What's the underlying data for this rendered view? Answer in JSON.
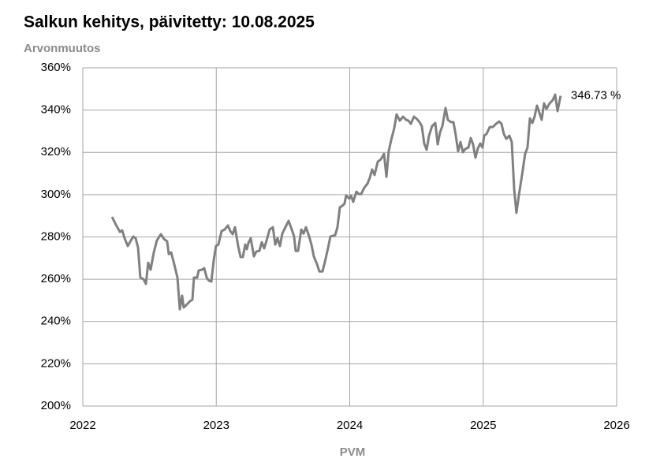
{
  "chart_data": {
    "type": "line",
    "title": "Salkun kehitys, päivitetty: 10.08.2025",
    "y_label": "Arvonmuutos",
    "x_label": "PVM",
    "annotation": "346.73 %",
    "color": "#808080",
    "grid": true,
    "xlim": [
      2022,
      2026
    ],
    "xticks": [
      2022,
      2023,
      2024,
      2025,
      2026
    ],
    "ylim": [
      200,
      360
    ],
    "yticks": [
      {
        "value": 200,
        "label": "200%"
      },
      {
        "value": 220,
        "label": "220%"
      },
      {
        "value": 240,
        "label": "240%"
      },
      {
        "value": 260,
        "label": "260%"
      },
      {
        "value": 280,
        "label": "280%"
      },
      {
        "value": 300,
        "label": "300%"
      },
      {
        "value": 320,
        "label": "320%"
      },
      {
        "value": 340,
        "label": "340%"
      },
      {
        "value": 360,
        "label": "360%"
      }
    ],
    "x": [
      2022.219,
      2022.248,
      2022.278,
      2022.295,
      2022.313,
      2022.337,
      2022.36,
      2022.378,
      2022.396,
      2022.414,
      2022.431,
      2022.455,
      2022.473,
      2022.49,
      2022.508,
      2022.532,
      2022.555,
      2022.585,
      2022.609,
      2022.632,
      2022.644,
      2022.662,
      2022.685,
      2022.709,
      2022.727,
      2022.744,
      2022.756,
      2022.78,
      2022.803,
      2022.821,
      2022.833,
      2022.857,
      2022.868,
      2022.892,
      2022.91,
      2022.928,
      2022.945,
      2022.963,
      2022.981,
      2022.998,
      2023.016,
      2023.04,
      2023.063,
      2023.087,
      2023.105,
      2023.123,
      2023.14,
      2023.164,
      2023.182,
      2023.199,
      2023.217,
      2023.229,
      2023.241,
      2023.258,
      2023.282,
      2023.3,
      2023.323,
      2023.341,
      2023.359,
      2023.377,
      2023.4,
      2023.424,
      2023.442,
      2023.459,
      2023.477,
      2023.495,
      2023.518,
      2023.542,
      2023.566,
      2023.583,
      2023.595,
      2023.613,
      2023.637,
      2023.654,
      2023.672,
      2023.696,
      2023.713,
      2023.731,
      2023.755,
      2023.772,
      2023.796,
      2023.814,
      2023.837,
      2023.855,
      2023.873,
      2023.891,
      2023.908,
      2023.926,
      2023.944,
      2023.961,
      2023.973,
      2023.997,
      2024.009,
      2024.026,
      2024.05,
      2024.068,
      2024.086,
      2024.109,
      2024.133,
      2024.151,
      2024.168,
      2024.186,
      2024.21,
      2024.233,
      2024.257,
      2024.275,
      2024.292,
      2024.31,
      2024.334,
      2024.351,
      2024.375,
      2024.399,
      2024.422,
      2024.44,
      2024.458,
      2024.481,
      2024.505,
      2024.523,
      2024.54,
      2024.558,
      2024.576,
      2024.594,
      2024.617,
      2024.641,
      2024.659,
      2024.676,
      2024.694,
      2024.718,
      2024.735,
      2024.759,
      2024.777,
      2024.794,
      2024.812,
      2024.83,
      2024.848,
      2024.865,
      2024.889,
      2024.907,
      2024.924,
      2024.942,
      2024.96,
      2024.978,
      2024.995,
      2025.007,
      2025.025,
      2025.049,
      2025.072,
      2025.096,
      2025.119,
      2025.137,
      2025.155,
      2025.173,
      2025.196,
      2025.214,
      2025.232,
      2025.249,
      2025.267,
      2025.291,
      2025.314,
      2025.332,
      2025.35,
      2025.368,
      2025.385,
      2025.403,
      2025.421,
      2025.438,
      2025.456,
      2025.474,
      2025.498,
      2025.521,
      2025.539,
      2025.557,
      2025.58
    ],
    "values": [
      289.5,
      285.8,
      282.4,
      283.1,
      279.4,
      275.7,
      278.3,
      280.2,
      279.4,
      274.9,
      260.8,
      260.0,
      257.8,
      267.8,
      264.5,
      272.7,
      278.3,
      281.3,
      279.0,
      277.9,
      271.9,
      272.7,
      267.1,
      260.8,
      245.8,
      252.2,
      246.6,
      248.1,
      249.6,
      250.3,
      260.8,
      260.8,
      264.1,
      264.5,
      265.2,
      260.8,
      259.3,
      258.9,
      269.0,
      275.7,
      276.4,
      282.8,
      283.5,
      285.4,
      282.8,
      281.3,
      284.6,
      275.7,
      270.5,
      270.5,
      276.4,
      274.2,
      277.2,
      279.4,
      270.8,
      273.1,
      273.4,
      277.5,
      274.6,
      278.3,
      283.5,
      284.6,
      276.4,
      279.4,
      275.7,
      281.6,
      284.6,
      287.6,
      283.5,
      280.2,
      273.4,
      273.4,
      283.5,
      281.6,
      284.6,
      280.2,
      276.4,
      270.8,
      267.1,
      263.7,
      263.7,
      268.2,
      274.6,
      280.2,
      280.5,
      280.9,
      284.6,
      294.0,
      294.7,
      295.8,
      299.6,
      298.1,
      299.6,
      296.6,
      301.4,
      300.3,
      300.3,
      303.3,
      305.2,
      308.1,
      311.9,
      309.3,
      315.6,
      316.7,
      319.3,
      308.5,
      320.5,
      325.7,
      331.6,
      338.0,
      335.0,
      336.9,
      335.4,
      335.0,
      333.5,
      336.9,
      335.7,
      334.3,
      332.4,
      324.2,
      321.2,
      327.9,
      332.4,
      333.9,
      323.8,
      329.4,
      332.4,
      341.0,
      335.4,
      334.3,
      334.3,
      328.3,
      320.5,
      324.9,
      320.1,
      321.6,
      322.3,
      326.8,
      323.8,
      317.5,
      321.9,
      324.2,
      322.3,
      327.9,
      328.7,
      332.0,
      332.0,
      333.5,
      334.6,
      333.5,
      328.7,
      326.4,
      327.9,
      324.9,
      302.5,
      291.4,
      299.6,
      309.3,
      319.3,
      322.3,
      336.1,
      333.9,
      336.9,
      342.1,
      338.7,
      335.4,
      343.2,
      340.6,
      343.2,
      344.7,
      347.3,
      339.5,
      346.73
    ]
  }
}
